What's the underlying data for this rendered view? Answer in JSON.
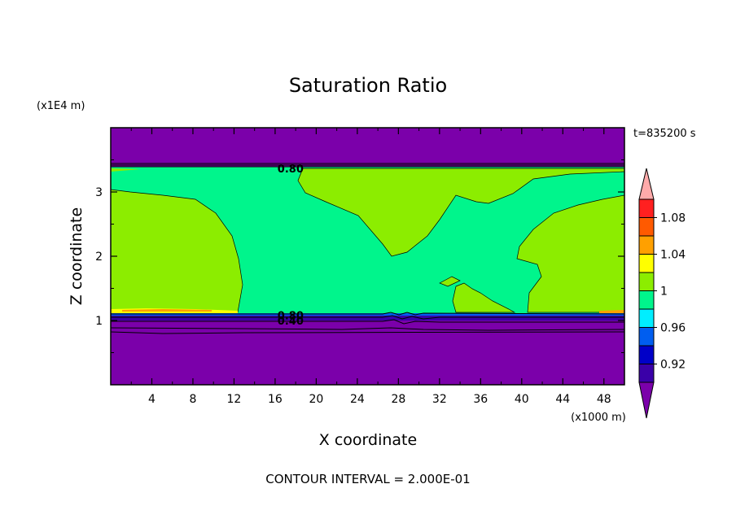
{
  "chart_data": {
    "type": "heatmap",
    "title": "Saturation Ratio",
    "xlabel": "X coordinate",
    "ylabel": "Z coordinate",
    "x_unit": "(x1000 m)",
    "y_unit": "(x1E4 m)",
    "time_label": "t=835200 s",
    "footer": "CONTOUR INTERVAL = 2.000E-01",
    "xlim": [
      0,
      50
    ],
    "ylim": [
      0,
      4
    ],
    "x_ticks": [
      4,
      8,
      12,
      16,
      20,
      24,
      28,
      32,
      36,
      40,
      44,
      48
    ],
    "y_ticks": [
      1,
      2,
      3
    ],
    "contour_labels": [
      {
        "text": "0.80",
        "x": 17.5,
        "z": 3.37
      },
      {
        "text": "0.80",
        "x": 17.5,
        "z": 1.08
      },
      {
        "text": "0.40",
        "x": 17.5,
        "z": 1.0
      }
    ],
    "colorbar": {
      "labels": [
        "1.08",
        "1.04",
        "1",
        "0.96",
        "0.92"
      ],
      "levels": [
        {
          "upper": "min",
          "color": "#7b00aa"
        },
        {
          "upper": 0.92,
          "color": "#3a00a8"
        },
        {
          "upper": 0.94,
          "color": "#0000c8"
        },
        {
          "upper": 0.96,
          "color": "#005ef0"
        },
        {
          "upper": 0.98,
          "color": "#00eeff"
        },
        {
          "upper": 1.0,
          "color": "#00f58c"
        },
        {
          "upper": 1.02,
          "color": "#8ced00"
        },
        {
          "upper": 1.04,
          "color": "#ffff00"
        },
        {
          "upper": 1.06,
          "color": "#ffa000"
        },
        {
          "upper": 1.08,
          "color": "#ff5a00"
        },
        {
          "upper": 1.1,
          "color": "#ff2020"
        },
        {
          "upper": "max",
          "color": "#ffaaaa"
        }
      ]
    }
  }
}
